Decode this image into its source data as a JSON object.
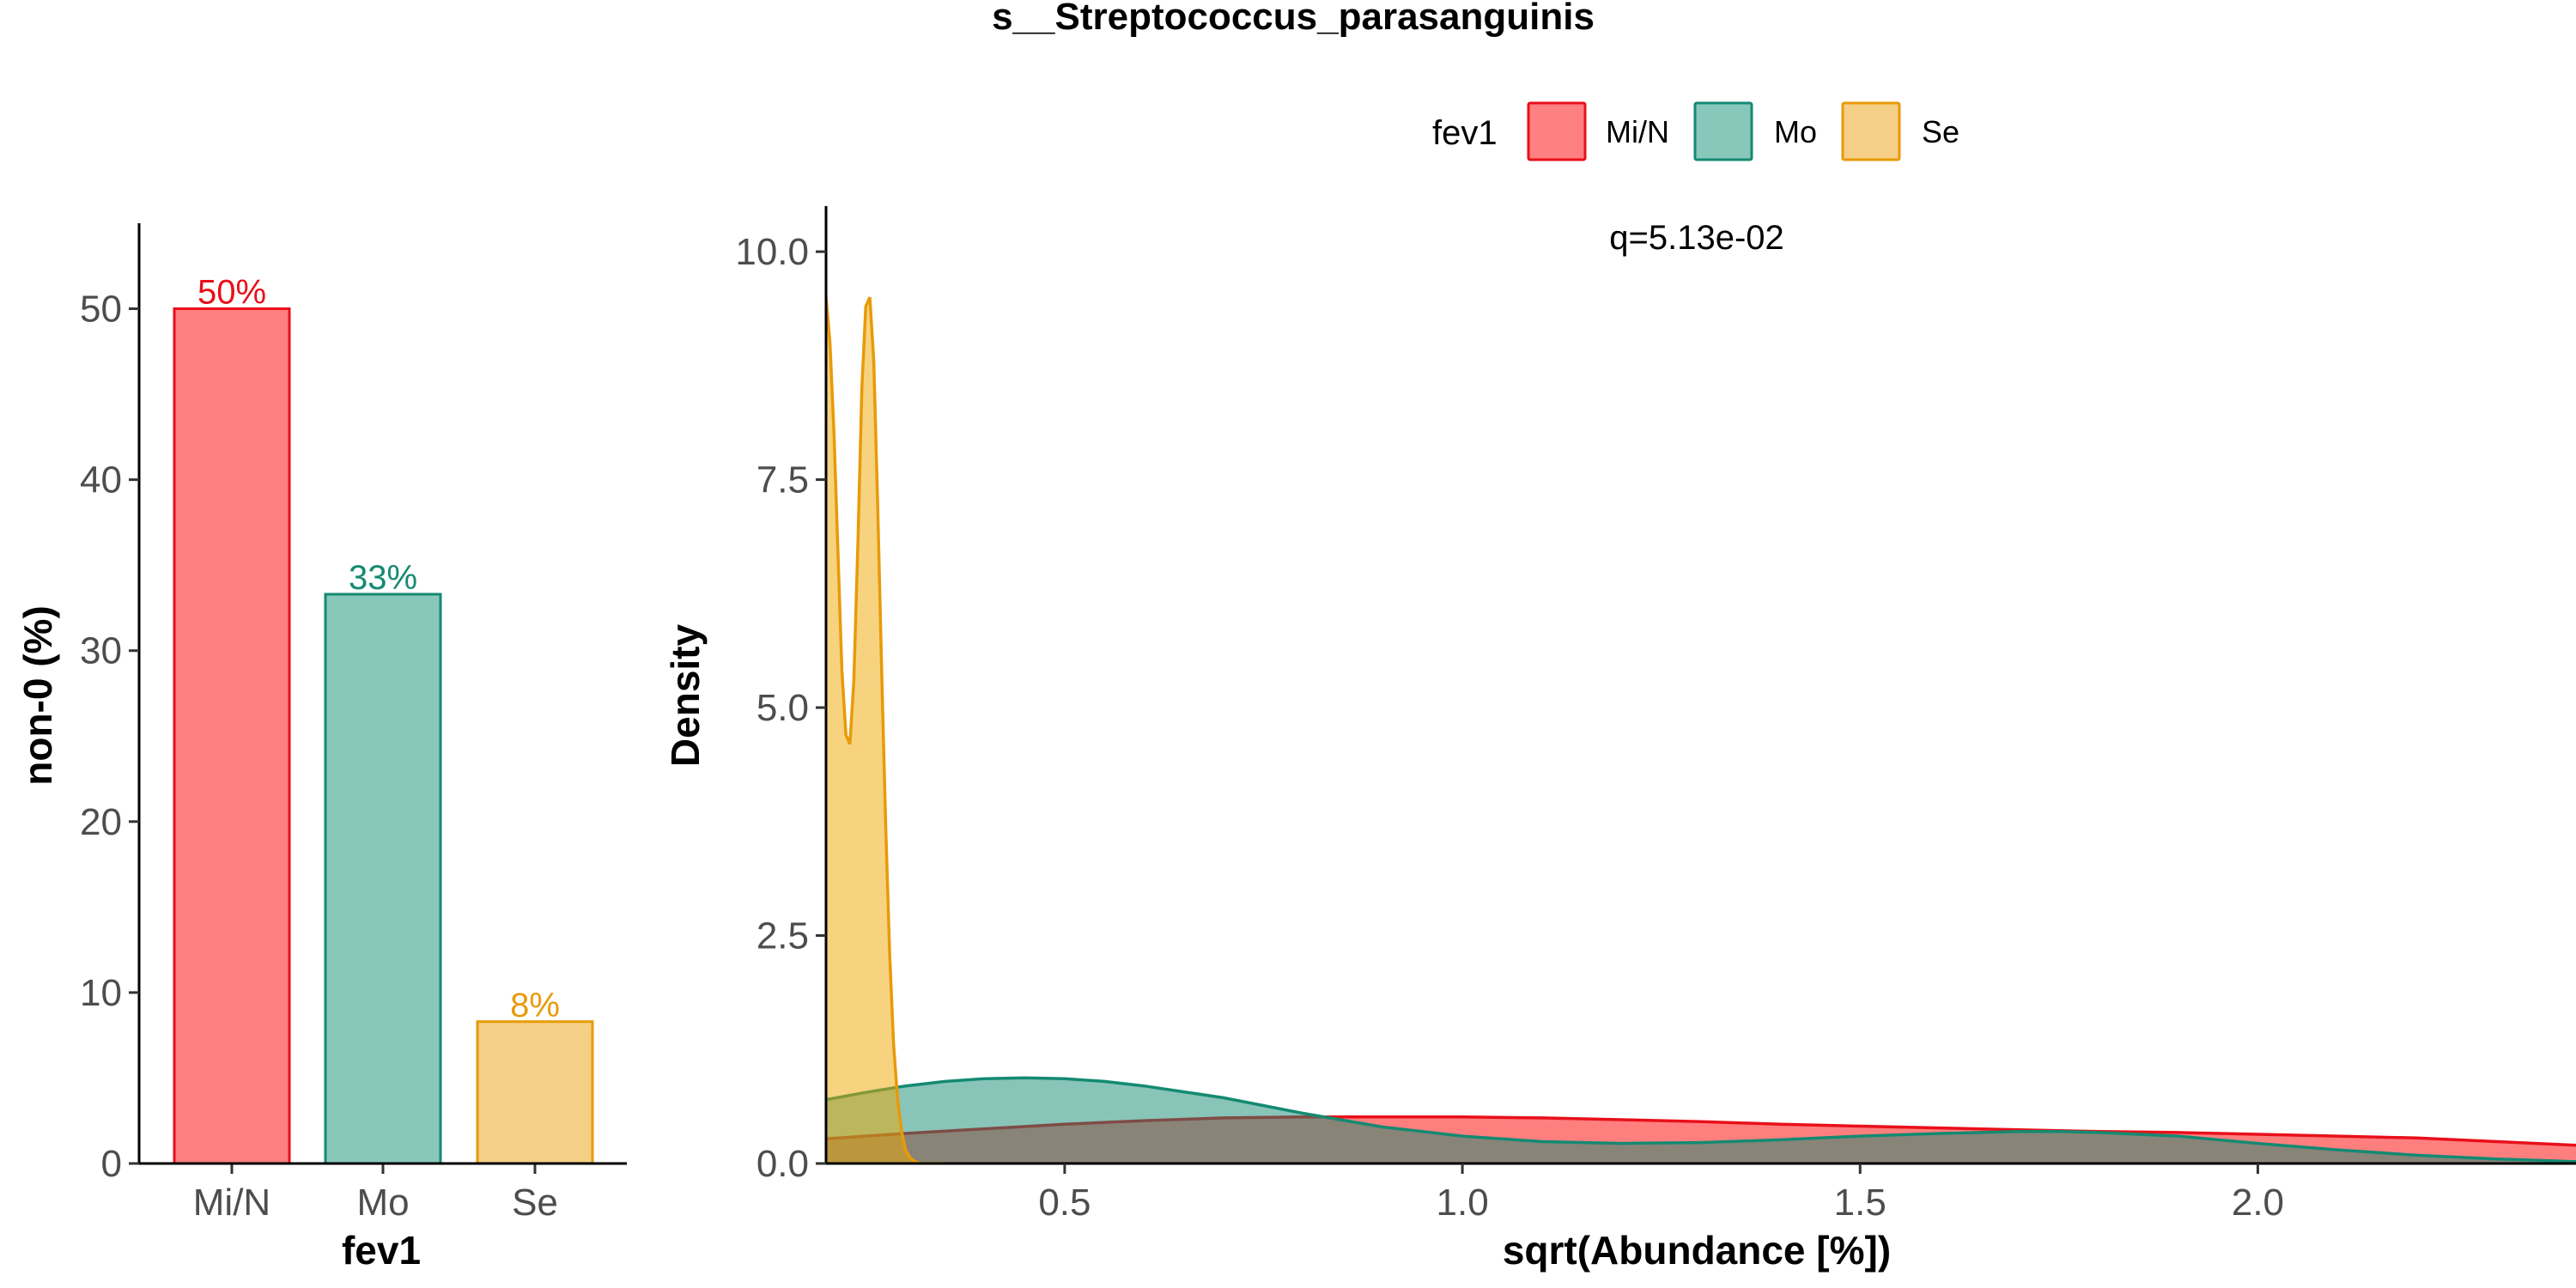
{
  "title": "s__Streptococcus_parasanguinis",
  "legend": {
    "title": "fev1",
    "placement": "top",
    "entries": [
      {
        "label": "Mi/N",
        "fill": "#FF8080",
        "stroke": "#E8101A"
      },
      {
        "label": "Mo",
        "fill": "#88C8BA",
        "stroke": "#148A72"
      },
      {
        "label": "Se",
        "fill": "#F5CF85",
        "stroke": "#E89A08"
      }
    ]
  },
  "chart_data": [
    {
      "type": "bar",
      "xlabel": "fev1",
      "ylabel": "non-0 (%)",
      "categories": [
        "Mi/N",
        "Mo",
        "Se"
      ],
      "values": [
        50,
        33.3,
        8.3
      ],
      "data_labels": [
        "50%",
        "33%",
        "8%"
      ],
      "ylim": [
        0,
        55
      ],
      "yticks": [
        0,
        10,
        20,
        30,
        40,
        50
      ],
      "colors": {
        "fill": [
          "#FF8080",
          "#88C8BA",
          "#F5CF85"
        ],
        "stroke": [
          "#E8101A",
          "#148A72",
          "#E89A08"
        ]
      },
      "grid": false
    },
    {
      "type": "area",
      "xlabel": "sqrt(Abundance [%])",
      "ylabel": "Density",
      "annotation": "q=5.13e-02",
      "xlim": [
        0.2,
        2.4
      ],
      "ylim": [
        0,
        10.5
      ],
      "xticks": [
        0.5,
        1.0,
        1.5,
        2.0
      ],
      "xtick_labels": [
        "0.5",
        "1.0",
        "1.5",
        "2.0"
      ],
      "yticks": [
        0,
        2.5,
        5,
        7.5,
        10
      ],
      "ytick_labels": [
        "0.0",
        "2.5",
        "5.0",
        "7.5",
        "10.0"
      ],
      "grid": false,
      "series": [
        {
          "name": "Mi/N",
          "fill": "#FF0000",
          "stroke": "#E8101A",
          "opacity": 0.5,
          "x": [
            0.2,
            0.3,
            0.4,
            0.5,
            0.6,
            0.7,
            0.8,
            0.9,
            1.0,
            1.1,
            1.2,
            1.3,
            1.4,
            1.5,
            1.6,
            1.7,
            1.8,
            1.9,
            2.0,
            2.1,
            2.2,
            2.3,
            2.4
          ],
          "y": [
            0.27,
            0.33,
            0.38,
            0.43,
            0.47,
            0.5,
            0.51,
            0.51,
            0.51,
            0.5,
            0.48,
            0.46,
            0.43,
            0.41,
            0.39,
            0.37,
            0.35,
            0.34,
            0.32,
            0.3,
            0.28,
            0.24,
            0.2
          ]
        },
        {
          "name": "Mo",
          "fill": "#148A72",
          "stroke": "#148A72",
          "opacity": 0.5,
          "x": [
            0.2,
            0.25,
            0.3,
            0.35,
            0.4,
            0.45,
            0.5,
            0.55,
            0.6,
            0.7,
            0.8,
            0.9,
            1.0,
            1.1,
            1.2,
            1.3,
            1.4,
            1.5,
            1.6,
            1.7,
            1.75,
            1.8,
            1.9,
            2.0,
            2.1,
            2.2,
            2.3,
            2.4
          ],
          "y": [
            0.7,
            0.78,
            0.85,
            0.9,
            0.93,
            0.94,
            0.93,
            0.9,
            0.85,
            0.72,
            0.55,
            0.4,
            0.3,
            0.24,
            0.22,
            0.23,
            0.26,
            0.3,
            0.33,
            0.35,
            0.35,
            0.34,
            0.3,
            0.22,
            0.15,
            0.09,
            0.05,
            0.02
          ]
        },
        {
          "name": "Se",
          "fill": "#F0A800",
          "stroke": "#E89A08",
          "opacity": 0.5,
          "x": [
            0.2,
            0.205,
            0.21,
            0.215,
            0.22,
            0.225,
            0.23,
            0.235,
            0.24,
            0.245,
            0.25,
            0.255,
            0.26,
            0.265,
            0.27,
            0.275,
            0.28,
            0.285,
            0.29,
            0.295,
            0.3,
            0.305,
            0.31,
            0.315,
            0.32,
            0.325,
            0.33,
            0.335,
            0.34,
            0.345,
            0.35
          ],
          "y": [
            9.5,
            9.0,
            8.0,
            6.7,
            5.4,
            4.7,
            4.6,
            5.3,
            6.8,
            8.5,
            9.4,
            9.5,
            8.8,
            7.2,
            5.4,
            3.7,
            2.3,
            1.3,
            0.7,
            0.35,
            0.15,
            0.07,
            0.03,
            0.01,
            0.0,
            0.0,
            0.0,
            0.0,
            0.0,
            0.0,
            0.0
          ]
        }
      ]
    }
  ]
}
